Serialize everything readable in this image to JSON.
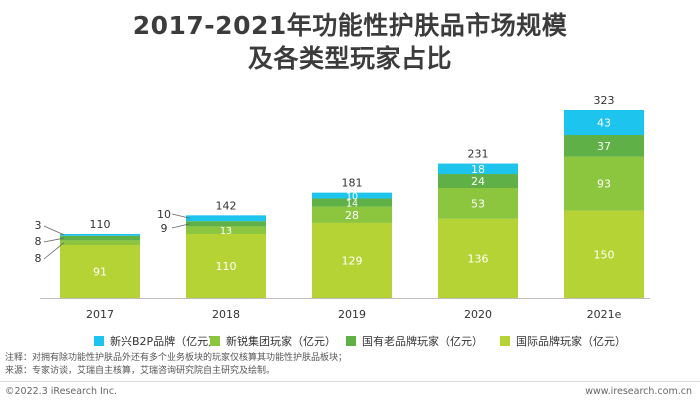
{
  "title": {
    "line1": "2017-2021年功能性护肤品市场规模",
    "line2": "及各类型玩家占比"
  },
  "chart_data": {
    "type": "bar",
    "stacked": true,
    "categories": [
      "2017",
      "2018",
      "2019",
      "2020",
      "2021e"
    ],
    "series": [
      {
        "name": "国际品牌玩家（亿元）",
        "color": "#b5d334",
        "values": [
          91,
          110,
          129,
          136,
          150
        ]
      },
      {
        "name": "新锐集团玩家（亿元）",
        "color": "#8cc63f",
        "values": [
          8,
          13,
          28,
          53,
          93
        ]
      },
      {
        "name": "国有老品牌玩家（亿元）",
        "color": "#5fb046",
        "values": [
          8,
          9,
          14,
          24,
          37
        ]
      },
      {
        "name": "新兴B2P品牌（亿元）",
        "color": "#1cc4ee",
        "values": [
          3,
          10,
          10,
          18,
          43
        ]
      }
    ],
    "totals": [
      110,
      142,
      181,
      231,
      323
    ],
    "legend_order": [
      3,
      1,
      2,
      0
    ],
    "legend_position": "bottom",
    "grid": false,
    "ylim": [
      0,
      323
    ]
  },
  "notes": {
    "line1": "注释：对拥有除功能性护肤品外还有多个业务板块的玩家仅核算其功能性护肤品板块；",
    "line2": "来源：专家访谈，艾瑞自主核算，艾瑞咨询研究院自主研究及绘制。"
  },
  "footer": {
    "copyright": "©2022.3 iResearch Inc.",
    "website": "www.iresearch.com.cn"
  }
}
